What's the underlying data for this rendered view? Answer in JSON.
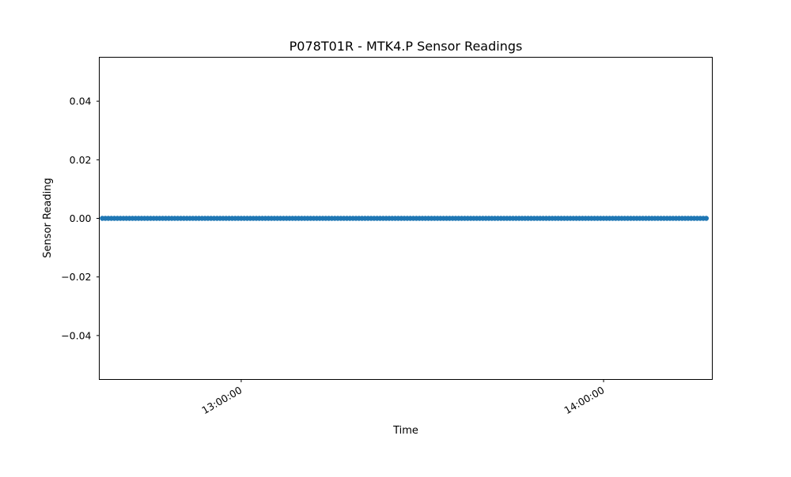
{
  "chart_data": {
    "type": "scatter",
    "title": "P078T01R - MTK4.P Sensor Readings",
    "xlabel": "Time",
    "ylabel": "Sensor Reading",
    "x_range": [
      "12:36:30",
      "14:18:00"
    ],
    "x_ticks": [
      "13:00:00",
      "14:00:00"
    ],
    "ylim": [
      -0.055,
      0.055
    ],
    "y_ticks": [
      0.04,
      0.02,
      0.0,
      -0.02,
      -0.04
    ],
    "y_tick_labels": [
      "0.04",
      "0.02",
      "0.00",
      "−0.02",
      "−0.04"
    ],
    "grid": false,
    "series": [
      {
        "color": "#1f77b4",
        "x_start": "12:37:00",
        "x_end": "14:17:00",
        "interval_seconds": 30,
        "value": 0.0
      }
    ]
  }
}
